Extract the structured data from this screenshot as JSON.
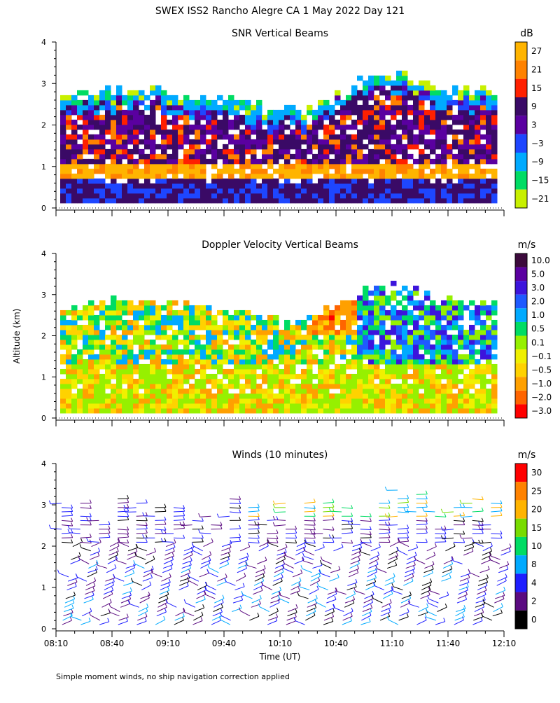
{
  "page_title": "SWEX ISS2 Rancho Alegre CA    1 May 2022 Day 121",
  "y_axis_label": "Altitude (km)",
  "x_axis_label": "Time (UT)",
  "footnote": "Simple moment winds, no ship navigation correction applied",
  "chart_data": [
    {
      "type": "heatmap",
      "title": "SNR Vertical Beams",
      "units": "dB",
      "x_ticks": [
        "08:10",
        "08:40",
        "09:10",
        "09:40",
        "10:10",
        "10:40",
        "11:10",
        "11:40",
        "12:10"
      ],
      "x_range_hours_ut": [
        8.1667,
        12.1667
      ],
      "y_ticks": [
        "0",
        "1",
        "2",
        "3",
        "4"
      ],
      "ylim_km": [
        0,
        4
      ],
      "colorbar": {
        "labels": [
          "27",
          "21",
          "15",
          "9",
          "3",
          "−3",
          "−9",
          "−15",
          "−21"
        ],
        "colors": [
          "#ffb400",
          "#ff8200",
          "#ff2000",
          "#3a0a66",
          "#5a00a0",
          "#1e46ff",
          "#00aaff",
          "#00dc64",
          "#c8f000"
        ]
      },
      "layers": [
        {
          "name": "high-snr-band",
          "altitude_km": [
            0.65,
            0.95
          ],
          "snr_db": 27
        },
        {
          "name": "surface-layer",
          "altitude_km": [
            0.15,
            0.6
          ],
          "snr_db": 9
        },
        {
          "name": "mid-layer",
          "altitude_km": [
            1.0,
            2.3
          ],
          "snr_db": 12
        },
        {
          "name": "top-edge",
          "altitude_km": [
            2.3,
            3.3
          ],
          "snr_db": -12
        }
      ]
    },
    {
      "type": "heatmap",
      "title": "Doppler Velocity Vertical Beams",
      "units": "m/s",
      "x_ticks": [
        "08:10",
        "08:40",
        "09:10",
        "09:40",
        "10:10",
        "10:40",
        "11:10",
        "11:40",
        "12:10"
      ],
      "x_range_hours_ut": [
        8.1667,
        12.1667
      ],
      "y_ticks": [
        "0",
        "1",
        "2",
        "3",
        "4"
      ],
      "ylim_km": [
        0,
        4
      ],
      "colorbar": {
        "labels": [
          "10.0",
          "5.0",
          "3.0",
          "2.0",
          "1.0",
          "0.5",
          "0.1",
          "−0.1",
          "−0.5",
          "−1.0",
          "−2.0",
          "−3.0"
        ],
        "colors": [
          "#3c0a3c",
          "#5a00a0",
          "#3c14dc",
          "#1e5aff",
          "#00aaff",
          "#00dc64",
          "#96f000",
          "#f0f000",
          "#ffd200",
          "#ffa000",
          "#ff6400",
          "#ff0000"
        ]
      },
      "layers": [
        {
          "name": "lower-layer",
          "altitude_km": [
            0.15,
            1.2
          ],
          "velocity_ms": -0.3
        },
        {
          "name": "mid-layer",
          "altitude_km": [
            1.2,
            2.6
          ],
          "velocity_ms": 0.2
        },
        {
          "name": "updraft-cell",
          "altitude_km": [
            2.0,
            3.2
          ],
          "velocity_ms": 2.0
        }
      ]
    },
    {
      "type": "wind-barbs",
      "title": "Winds (10 minutes)",
      "units": "m/s",
      "x_ticks": [
        "08:10",
        "08:40",
        "09:10",
        "09:40",
        "10:10",
        "10:40",
        "11:10",
        "11:40",
        "12:10"
      ],
      "x_range_hours_ut": [
        8.1667,
        12.1667
      ],
      "y_ticks": [
        "0",
        "1",
        "2",
        "3",
        "4"
      ],
      "ylim_km": [
        0,
        4
      ],
      "colorbar": {
        "labels": [
          "30",
          "25",
          "20",
          "15",
          "10",
          "8",
          "4",
          "2",
          "0"
        ],
        "colors": [
          "#ff0000",
          "#ff8200",
          "#ffb400",
          "#78dc00",
          "#00dc64",
          "#00aaff",
          "#1e1eff",
          "#5a0a80",
          "#000000"
        ]
      },
      "interval_minutes": 10,
      "altitude_range_km": [
        0.1,
        3.3
      ]
    }
  ]
}
